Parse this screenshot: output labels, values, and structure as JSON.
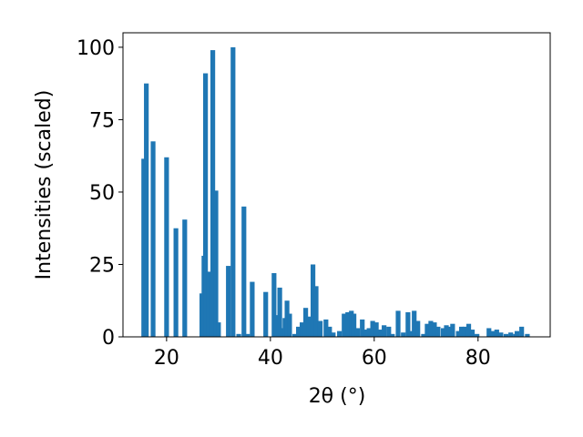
{
  "chart_data": {
    "type": "bar",
    "x_label": "2θ (°)",
    "y_label": "Intensities (scaled)",
    "color": "#1f77b4",
    "x": [
      15.6,
      16.1,
      17.4,
      20.0,
      21.8,
      23.5,
      26.8,
      27.2,
      27.5,
      28.1,
      28.9,
      29.5,
      30.0,
      31.9,
      32.8,
      33.9,
      34.9,
      35.6,
      36.5,
      39.1,
      40.7,
      41.2,
      41.8,
      42.3,
      42.8,
      43.2,
      43.7,
      44.7,
      45.4,
      46.1,
      46.8,
      47.4,
      48.2,
      48.8,
      49.6,
      50.7,
      51.4,
      52.1,
      53.3,
      54.2,
      54.9,
      55.6,
      56.1,
      56.8,
      57.7,
      58.3,
      59.0,
      59.7,
      60.4,
      61.2,
      61.9,
      62.8,
      63.5,
      64.6,
      65.6,
      66.5,
      67.0,
      67.7,
      68.4,
      69.5,
      70.2,
      70.9,
      71.6,
      72.3,
      73.3,
      73.9,
      74.4,
      75.1,
      76.2,
      76.8,
      77.5,
      78.2,
      78.9,
      79.8,
      82.1,
      82.8,
      83.6,
      84.4,
      85.4,
      86.3,
      87.2,
      87.5,
      88.4,
      89.5
    ],
    "values": [
      61.5,
      87.5,
      67.5,
      62,
      37.5,
      40.5,
      15,
      28,
      91,
      22.5,
      99,
      50.5,
      5,
      24.5,
      100,
      1,
      45,
      1,
      19,
      15.5,
      22,
      7.5,
      17,
      3,
      6.5,
      12.5,
      8,
      1,
      3.5,
      5,
      10,
      7,
      25,
      17.5,
      5.5,
      6,
      3.5,
      1.5,
      2,
      8,
      8.5,
      9,
      8,
      3,
      6,
      2.5,
      3,
      5.5,
      5,
      2.5,
      4,
      3.5,
      1,
      9,
      1.5,
      8.5,
      2,
      9,
      5.5,
      1,
      4.5,
      5.5,
      5,
      3.5,
      3,
      4,
      3.5,
      4.5,
      2,
      3.5,
      3.5,
      4.5,
      2.5,
      1,
      3,
      2,
      2.5,
      1.5,
      1,
      1.5,
      1,
      2,
      3.5,
      1
    ],
    "xlim": [
      11.6,
      93.9
    ],
    "ylim": [
      0,
      105
    ],
    "xticks": [
      20,
      40,
      60,
      80
    ],
    "yticks": [
      0,
      25,
      50,
      75,
      100
    ]
  }
}
